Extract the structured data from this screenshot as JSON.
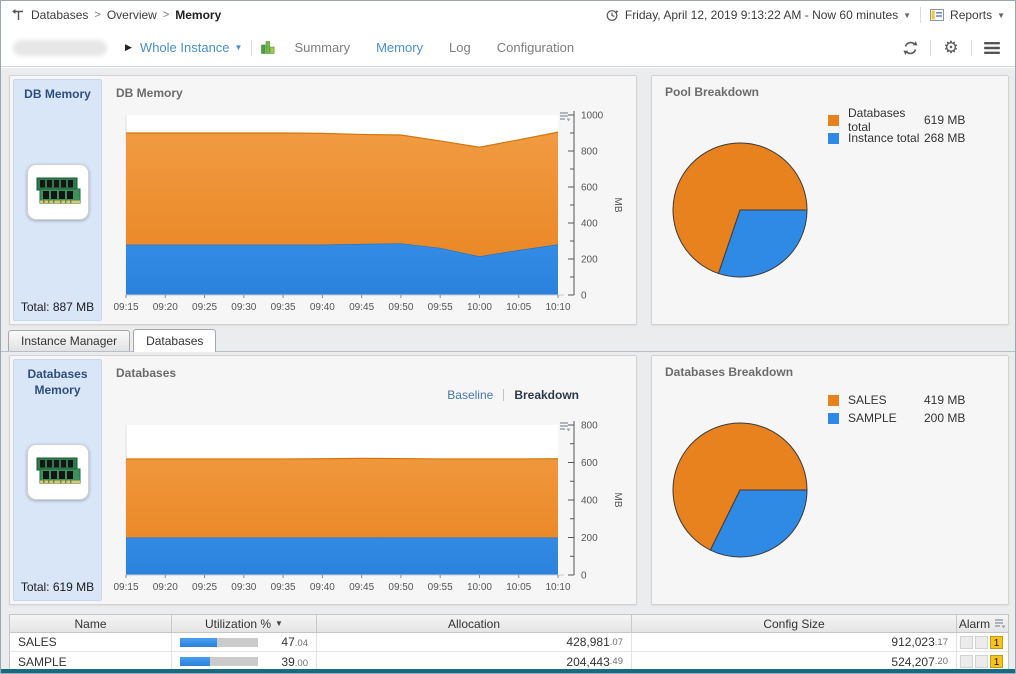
{
  "breadcrumb": {
    "items": [
      {
        "label": "Databases"
      },
      {
        "label": "Overview"
      }
    ],
    "current": "Memory",
    "separator": ">"
  },
  "timebar": {
    "range_label": "Friday, April 12, 2019 9:13:22 AM - Now 60 minutes",
    "reports_label": "Reports"
  },
  "toolbar": {
    "scope_label": "Whole Instance",
    "nav": [
      {
        "label": "Summary",
        "active": false
      },
      {
        "label": "Memory",
        "active": true
      },
      {
        "label": "Log",
        "active": false
      },
      {
        "label": "Configuration",
        "active": false
      }
    ]
  },
  "db_memory": {
    "sidebar_title": "DB Memory",
    "total": "Total: 887 MB",
    "chart_title": "DB Memory"
  },
  "pool_breakdown": {
    "title": "Pool Breakdown",
    "legend": [
      {
        "label": "Databases total",
        "value": "619 MB",
        "color": "#e8821e"
      },
      {
        "label": "Instance total",
        "value": "268 MB",
        "color": "#2e8ae4"
      }
    ]
  },
  "tabs": [
    {
      "label": "Instance Manager",
      "active": false
    },
    {
      "label": "Databases",
      "active": true
    }
  ],
  "databases_memory": {
    "sidebar_title": "Databases Memory",
    "total": "Total: 619 MB",
    "chart_title": "Databases",
    "views": [
      {
        "label": "Baseline",
        "active": false
      },
      {
        "label": "Breakdown",
        "active": true
      }
    ]
  },
  "databases_breakdown": {
    "title": "Databases Breakdown",
    "legend": [
      {
        "label": "SALES",
        "value": "419 MB",
        "color": "#e8821e"
      },
      {
        "label": "SAMPLE",
        "value": "200 MB",
        "color": "#2e8ae4"
      }
    ]
  },
  "table": {
    "columns": [
      "Name",
      "Utilization %",
      "Allocation",
      "Config Size",
      "Alarm"
    ],
    "sort_column": "Utilization %",
    "rows": [
      {
        "name": "SALES",
        "utilization": {
          "pct": 47.04,
          "int": "47",
          "dec": ".04"
        },
        "allocation": {
          "int": "428,981",
          "dec": ".07"
        },
        "config_size": {
          "int": "912,023",
          "dec": ".17"
        },
        "alarm_count": "1"
      },
      {
        "name": "SAMPLE",
        "utilization": {
          "pct": 39.0,
          "int": "39",
          "dec": ".00"
        },
        "allocation": {
          "int": "204,443",
          "dec": ".49"
        },
        "config_size": {
          "int": "524,207",
          "dec": ".20"
        },
        "alarm_count": "1"
      }
    ]
  },
  "chart_data": [
    {
      "id": "db-memory-area",
      "type": "area",
      "stacked": true,
      "title": "DB Memory",
      "ylabel": "MB",
      "ylim": [
        0,
        1000
      ],
      "ytick_major": 200,
      "ytick_minor": 100,
      "x": [
        "09:15",
        "09:20",
        "09:25",
        "09:30",
        "09:35",
        "09:40",
        "09:45",
        "09:50",
        "09:55",
        "10:00",
        "10:05",
        "10:10"
      ],
      "series": [
        {
          "name": "Instance total",
          "values": [
            280,
            280,
            280,
            280,
            280,
            280,
            284,
            287,
            262,
            215,
            250,
            281
          ],
          "fill_top": "#4da3f7",
          "fill_bottom": "#2a82dd",
          "stroke": "#1f6fc2"
        },
        {
          "name": "Databases total",
          "values": [
            620,
            620,
            620,
            620,
            620,
            618,
            608,
            602,
            594,
            606,
            612,
            624
          ],
          "fill_top": "#f29d45",
          "fill_bottom": "#e8831f",
          "stroke": "#d2770f"
        }
      ]
    },
    {
      "id": "pool-pie",
      "type": "pie",
      "start_deg": 0,
      "slices": [
        {
          "label": "Instance total",
          "value": 268,
          "color": "#2e8ae4"
        },
        {
          "label": "Databases total",
          "value": 619,
          "color": "#e8821e"
        }
      ]
    },
    {
      "id": "databases-area",
      "type": "area",
      "stacked": true,
      "title": "Databases",
      "ylabel": "MB",
      "ylim": [
        0,
        800
      ],
      "ytick_major": 200,
      "ytick_minor": 100,
      "x": [
        "09:15",
        "09:20",
        "09:25",
        "09:30",
        "09:35",
        "09:40",
        "09:45",
        "09:50",
        "09:55",
        "10:00",
        "10:05",
        "10:10"
      ],
      "series": [
        {
          "name": "SAMPLE",
          "values": [
            200,
            200,
            200,
            200,
            200,
            200,
            200,
            200,
            200,
            200,
            200,
            200
          ],
          "fill_top": "#4da3f7",
          "fill_bottom": "#2a82dd",
          "stroke": "#1f6fc2"
        },
        {
          "name": "SALES",
          "values": [
            419,
            419,
            419,
            419,
            419,
            420,
            422,
            421,
            419,
            419,
            419,
            420
          ],
          "fill_top": "#f29d45",
          "fill_bottom": "#e8831f",
          "stroke": "#d2770f"
        }
      ]
    },
    {
      "id": "databases-pie",
      "type": "pie",
      "start_deg": 0,
      "slices": [
        {
          "label": "SAMPLE",
          "value": 200,
          "color": "#2e8ae4"
        },
        {
          "label": "SALES",
          "value": 419,
          "color": "#e8821e"
        }
      ]
    }
  ]
}
